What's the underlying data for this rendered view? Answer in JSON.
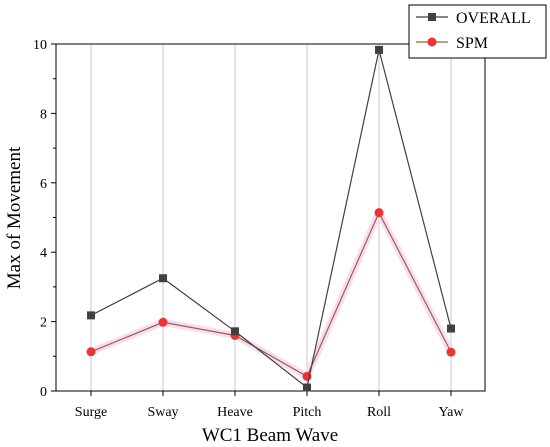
{
  "chart_data": {
    "type": "line",
    "title": "",
    "xlabel": "WC1 Beam Wave",
    "ylabel": "Max of Movement",
    "categories": [
      "Surge",
      "Sway",
      "Heave",
      "Pitch",
      "Roll",
      "Yaw"
    ],
    "ylim": [
      0,
      10
    ],
    "yticks": [
      "0",
      "2",
      "4",
      "6",
      "8",
      "10"
    ],
    "grid": "vertical",
    "legend_position": "top-right",
    "series": [
      {
        "name": "OVERALL",
        "marker": "square",
        "color": "#404040",
        "values": [
          2.18,
          3.25,
          1.72,
          0.1,
          9.83,
          1.8
        ]
      },
      {
        "name": "SPM",
        "marker": "circle",
        "color": "#ee3333",
        "line_color": "#996633",
        "values": [
          1.13,
          1.98,
          1.6,
          0.42,
          5.14,
          1.12
        ]
      }
    ]
  }
}
